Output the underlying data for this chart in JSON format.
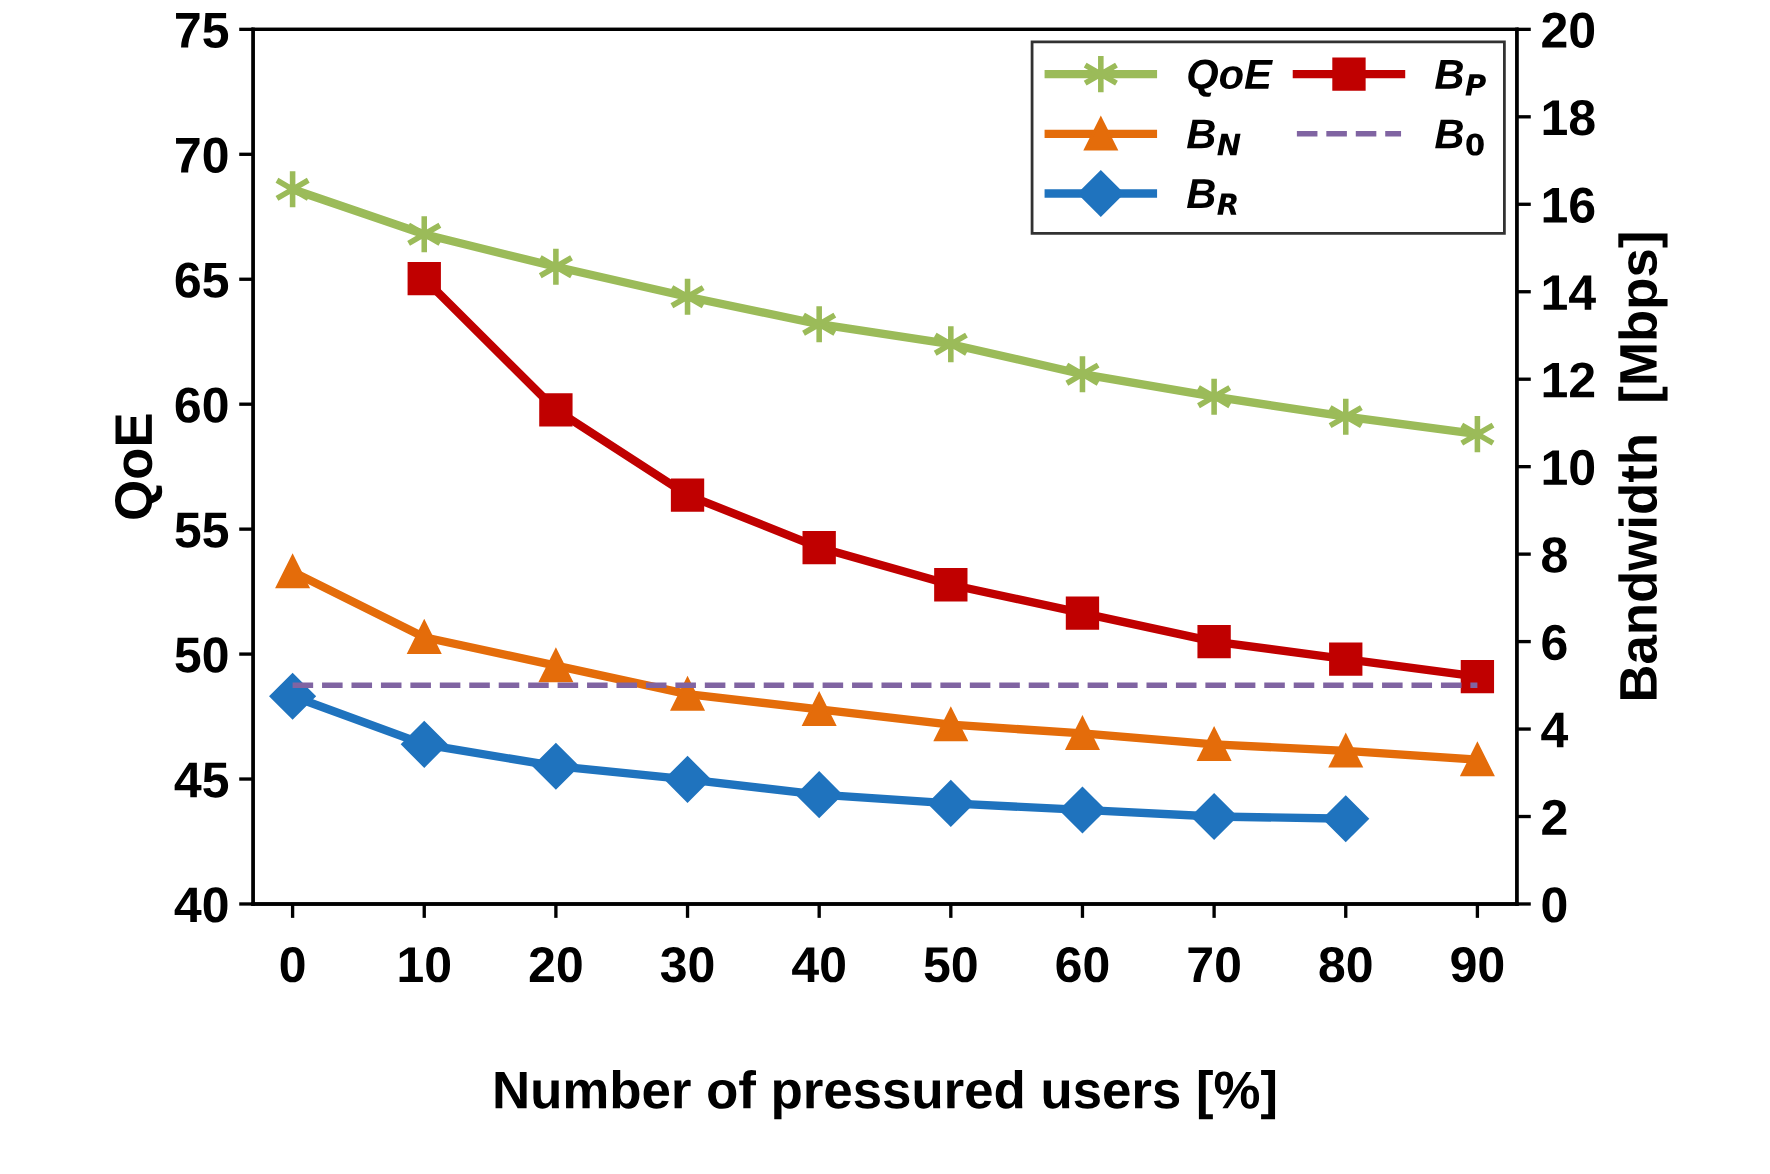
{
  "chart_data": {
    "type": "line",
    "xlabel": "Number of pressured users [%]",
    "ylabel": "QoE",
    "y2label": "Bandwidth  [Mbps]",
    "x": [
      0,
      10,
      20,
      30,
      40,
      50,
      60,
      70,
      80,
      90
    ],
    "xlim": [
      -3,
      93
    ],
    "xticks": [
      0,
      10,
      20,
      30,
      40,
      50,
      60,
      70,
      80,
      90
    ],
    "ylim": [
      40,
      75
    ],
    "yticks": [
      40,
      45,
      50,
      55,
      60,
      65,
      70,
      75
    ],
    "y2lim": [
      0,
      20
    ],
    "y2ticks": [
      0,
      2,
      4,
      6,
      8,
      10,
      12,
      14,
      16,
      18,
      20
    ],
    "grid": false,
    "legend": "top right",
    "series": [
      {
        "name": "QoE",
        "color": "#9bbb59",
        "marker": "cross",
        "line_style": "solid",
        "values": [
          68.6,
          66.8,
          65.5,
          64.3,
          63.2,
          62.4,
          61.2,
          60.3,
          59.5,
          58.8
        ]
      },
      {
        "name": "B$_{N}$",
        "color": "#e46c0a",
        "marker": "triangle",
        "line_style": "solid",
        "axis": "y2",
        "values": [
          7.6,
          6.1,
          5.45,
          4.8,
          4.45,
          4.1,
          3.9,
          3.65,
          3.5,
          3.3
        ]
      },
      {
        "name": "B$_{R}$",
        "color": "#1f73be",
        "marker": "diamond",
        "line_style": "solid",
        "axis": "y2",
        "values": [
          4.75,
          3.65,
          3.15,
          2.85,
          2.5,
          2.3,
          2.15,
          2.0,
          1.95,
          null
        ]
      },
      {
        "name": "B$_{P}$",
        "color": "#c00000",
        "marker": "square",
        "line_style": "solid",
        "axis": "y2",
        "values": [
          null,
          14.3,
          11.3,
          9.35,
          8.15,
          7.3,
          6.65,
          6.0,
          5.6,
          5.2
        ]
      },
      {
        "name": "B$_{0}$",
        "color": "#8064a2",
        "marker": "none",
        "line_style": "dashed",
        "axis": "y2",
        "values": [
          5,
          5,
          5,
          5,
          5,
          5,
          5,
          5,
          5,
          5
        ]
      }
    ]
  }
}
